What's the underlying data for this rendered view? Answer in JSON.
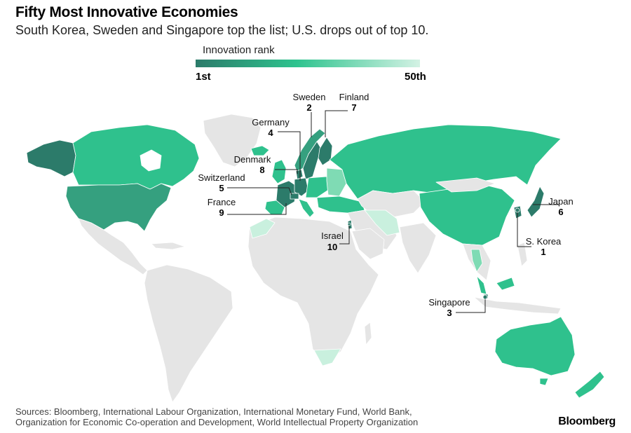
{
  "header": {
    "title": "Fifty Most Innovative Economies",
    "subtitle": "South Korea, Sweden and Singapore top the list; U.S. drops out of top 10."
  },
  "legend": {
    "title": "Innovation rank",
    "min_label": "1st",
    "max_label": "50th",
    "color_start": "#2c7b6a",
    "color_mid": "#2ec38e",
    "color_end": "#d3f2e4"
  },
  "colors": {
    "land": "#e5e5e5",
    "border": "#ffffff",
    "rank_top": "#2c7b6a",
    "rank_high": "#35a07f",
    "rank_mid": "#2fc18d",
    "rank_low": "#7fdbb4",
    "rank_bottom": "#c9f0de"
  },
  "callouts": [
    {
      "country": "Sweden",
      "rank": "2"
    },
    {
      "country": "Finland",
      "rank": "7"
    },
    {
      "country": "Germany",
      "rank": "4"
    },
    {
      "country": "Denmark",
      "rank": "8"
    },
    {
      "country": "Switzerland",
      "rank": "5"
    },
    {
      "country": "France",
      "rank": "9"
    },
    {
      "country": "Israel",
      "rank": "10"
    },
    {
      "country": "Japan",
      "rank": "6"
    },
    {
      "country": "S. Korea",
      "rank": "1"
    },
    {
      "country": "Singapore",
      "rank": "3"
    }
  ],
  "footer": {
    "source_line1": "Sources: Bloomberg, International Labour Organization, International Monetary Fund, World Bank,",
    "source_line2": "Organization for Economic Co-operation and Development, World Intellectual Property Organization",
    "brand": "Bloomberg"
  }
}
